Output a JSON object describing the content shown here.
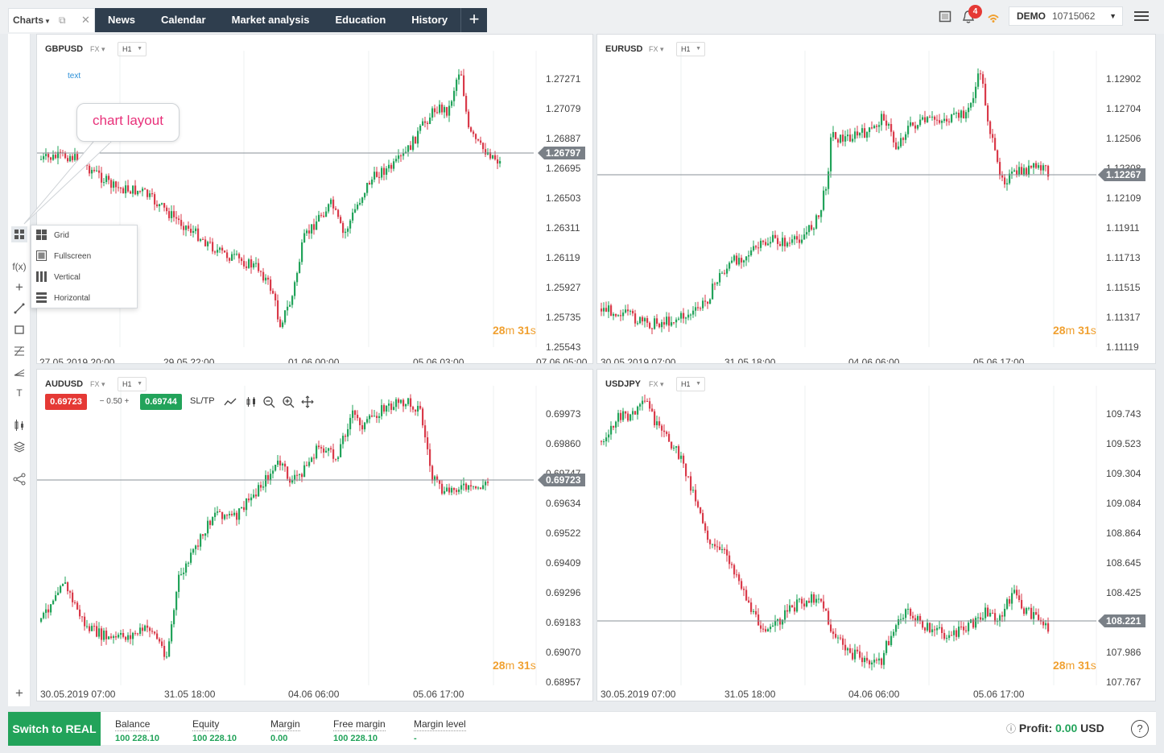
{
  "topbar": {
    "charts_tab": "Charts",
    "nav": [
      "News",
      "Calendar",
      "Market analysis",
      "Education",
      "History"
    ],
    "notifications_count": "4",
    "account_type": "DEMO",
    "account_number": "10715062"
  },
  "callout": "chart layout",
  "layout_menu": [
    "Grid",
    "Fullscreen",
    "Vertical",
    "Horizontal"
  ],
  "text_tag": "text",
  "trade": {
    "sell": "0.69723",
    "spread": "0.50",
    "buy": "0.69744",
    "sltp": "SL/TP"
  },
  "panels": [
    {
      "symbol": "GBPUSD",
      "market": "FX",
      "timeframe": "H1",
      "timer_m": "28",
      "timer_s": "31",
      "prices": [
        "1.27271",
        "1.27079",
        "1.26887",
        "1.26695",
        "1.26503",
        "1.26311",
        "1.26119",
        "1.25927",
        "1.25735",
        "1.25543"
      ],
      "current": "1.26797",
      "dates": [
        "27.05.2019 20:00",
        "29.05 22:00",
        "01.06 00:00",
        "05.06 03:00",
        "07.06 05:00"
      ]
    },
    {
      "symbol": "EURUSD",
      "market": "FX",
      "timeframe": "H1",
      "timer_m": "28",
      "timer_s": "31",
      "prices": [
        "1.12902",
        "1.12704",
        "1.12506",
        "1.12308",
        "1.12109",
        "1.11911",
        "1.11713",
        "1.11515",
        "1.11317",
        "1.11119"
      ],
      "current": "1.12267",
      "dates": [
        "30.05.2019 07:00",
        "31.05 18:00",
        "04.06 06:00",
        "05.06 17:00"
      ]
    },
    {
      "symbol": "AUDUSD",
      "market": "FX",
      "timeframe": "H1",
      "timer_m": "28",
      "timer_s": "31",
      "prices": [
        "0.69973",
        "0.69860",
        "0.69747",
        "0.69634",
        "0.69522",
        "0.69409",
        "0.69296",
        "0.69183",
        "0.69070",
        "0.68957"
      ],
      "current": "0.69723",
      "dates": [
        "30.05.2019 07:00",
        "31.05 18:00",
        "04.06 06:00",
        "05.06 17:00"
      ]
    },
    {
      "symbol": "USDJPY",
      "market": "FX",
      "timeframe": "H1",
      "timer_m": "28",
      "timer_s": "31",
      "prices": [
        "109.743",
        "109.523",
        "109.304",
        "109.084",
        "108.864",
        "108.645",
        "108.425",
        "108.206",
        "107.986",
        "107.767"
      ],
      "current": "108.221",
      "dates": [
        "30.05.2019 07:00",
        "31.05 18:00",
        "04.06 06:00",
        "05.06 17:00"
      ]
    }
  ],
  "bottom": {
    "real_button": "Switch to REAL",
    "stats": [
      {
        "label": "Balance",
        "value": "100 228.10"
      },
      {
        "label": "Equity",
        "value": "100 228.10"
      },
      {
        "label": "Margin",
        "value": "0.00"
      },
      {
        "label": "Free margin",
        "value": "100 228.10"
      },
      {
        "label": "Margin level",
        "value": "-"
      }
    ],
    "profit_label": "Profit:",
    "profit_value": "0.00",
    "profit_currency": "USD"
  },
  "colors": {
    "up": "#22a35a",
    "down": "#d93a4a",
    "nav": "#2f3e4e",
    "timer": "#f0a030"
  }
}
